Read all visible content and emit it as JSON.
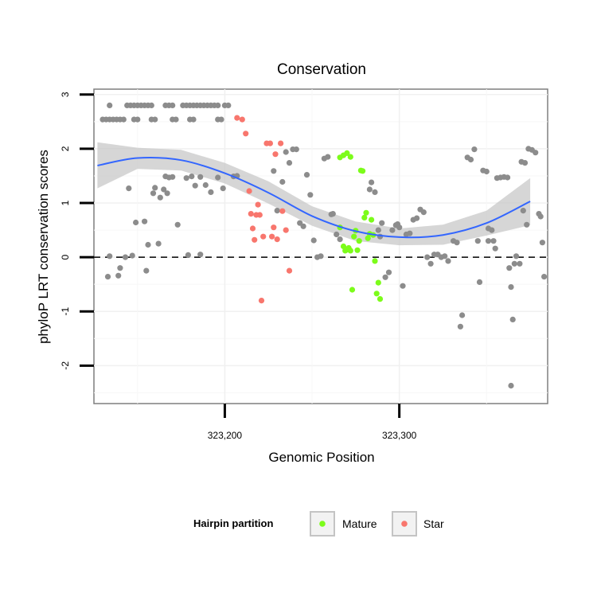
{
  "chart_data": {
    "type": "scatter",
    "title": "Conservation",
    "xlabel": "Genomic Position",
    "ylabel": "phyloP LRT conservation scores",
    "xlim": [
      323125,
      323385
    ],
    "ylim": [
      -2.7,
      3.1
    ],
    "x_ticks": [
      323200,
      323300
    ],
    "x_tick_labels": [
      "323,200",
      "323,300"
    ],
    "y_ticks": [
      -2,
      -1,
      0,
      1,
      2,
      3
    ],
    "y_tick_labels": [
      "-2",
      "-1",
      "0",
      "1",
      "2",
      "3"
    ],
    "reference_line": {
      "y": 0,
      "style": "dashed"
    },
    "grid": true,
    "legend": {
      "title": "Hairpin partition",
      "position": "bottom",
      "entries": [
        {
          "label": "Mature",
          "color": "#7CFC1A"
        },
        {
          "label": "Star",
          "color": "#F8766D"
        }
      ]
    },
    "colors": {
      "other": "#8c8c8c",
      "Mature": "#7CFC1A",
      "Star": "#F8766D",
      "smooth": "#3366FF",
      "ribbon": "#cccccc"
    },
    "series": [
      {
        "group": "other",
        "points": [
          [
            323130,
            2.54
          ],
          [
            323132,
            2.54
          ],
          [
            323134,
            2.54
          ],
          [
            323136,
            2.54
          ],
          [
            323138,
            2.54
          ],
          [
            323140,
            2.54
          ],
          [
            323142,
            2.54
          ],
          [
            323148,
            2.54
          ],
          [
            323150,
            2.54
          ],
          [
            323158,
            2.54
          ],
          [
            323160,
            2.54
          ],
          [
            323170,
            2.54
          ],
          [
            323172,
            2.54
          ],
          [
            323180,
            2.54
          ],
          [
            323182,
            2.54
          ],
          [
            323196,
            2.54
          ],
          [
            323198,
            2.54
          ],
          [
            323134,
            2.8
          ],
          [
            323144,
            2.8
          ],
          [
            323146,
            2.8
          ],
          [
            323148,
            2.8
          ],
          [
            323150,
            2.8
          ],
          [
            323152,
            2.8
          ],
          [
            323154,
            2.8
          ],
          [
            323156,
            2.8
          ],
          [
            323158,
            2.8
          ],
          [
            323166,
            2.8
          ],
          [
            323168,
            2.8
          ],
          [
            323170,
            2.8
          ],
          [
            323176,
            2.8
          ],
          [
            323178,
            2.8
          ],
          [
            323180,
            2.8
          ],
          [
            323182,
            2.8
          ],
          [
            323184,
            2.8
          ],
          [
            323186,
            2.8
          ],
          [
            323188,
            2.8
          ],
          [
            323190,
            2.8
          ],
          [
            323192,
            2.8
          ],
          [
            323194,
            2.8
          ],
          [
            323196,
            2.8
          ],
          [
            323200,
            2.8
          ],
          [
            323202,
            2.8
          ],
          [
            323134,
            0.02
          ],
          [
            323133,
            -0.36
          ],
          [
            323139,
            -0.34
          ],
          [
            323140,
            -0.2
          ],
          [
            323143,
            0.0
          ],
          [
            323147,
            0.03
          ],
          [
            323149,
            0.64
          ],
          [
            323154,
            0.66
          ],
          [
            323155,
            -0.25
          ],
          [
            323156,
            0.23
          ],
          [
            323159,
            1.18
          ],
          [
            323160,
            1.28
          ],
          [
            323162,
            0.25
          ],
          [
            323163,
            1.1
          ],
          [
            323165,
            1.25
          ],
          [
            323166,
            1.49
          ],
          [
            323167,
            1.18
          ],
          [
            323168,
            1.47
          ],
          [
            323170,
            1.48
          ],
          [
            323173,
            0.6
          ],
          [
            323178,
            1.46
          ],
          [
            323181,
            1.49
          ],
          [
            323183,
            1.32
          ],
          [
            323186,
            1.48
          ],
          [
            323189,
            1.33
          ],
          [
            323192,
            1.2
          ],
          [
            323196,
            1.47
          ],
          [
            323199,
            1.27
          ],
          [
            323145,
            1.27
          ],
          [
            323179,
            0.04
          ],
          [
            323186,
            0.05
          ],
          [
            323205,
            1.49
          ],
          [
            323207,
            1.5
          ],
          [
            323228,
            1.59
          ],
          [
            323230,
            0.86
          ],
          [
            323233,
            1.39
          ],
          [
            323235,
            1.94
          ],
          [
            323237,
            1.74
          ],
          [
            323239,
            1.99
          ],
          [
            323241,
            1.99
          ],
          [
            323243,
            0.63
          ],
          [
            323245,
            0.57
          ],
          [
            323247,
            1.52
          ],
          [
            323249,
            1.15
          ],
          [
            323251,
            0.31
          ],
          [
            323253,
            0.0
          ],
          [
            323255,
            0.02
          ],
          [
            323257,
            1.82
          ],
          [
            323259,
            1.85
          ],
          [
            323261,
            0.79
          ],
          [
            323262,
            0.8
          ],
          [
            323264,
            0.42
          ],
          [
            323266,
            0.33
          ],
          [
            323283,
            1.25
          ],
          [
            323284,
            1.38
          ],
          [
            323286,
            1.2
          ],
          [
            323288,
            0.5
          ],
          [
            323289,
            0.38
          ],
          [
            323290,
            0.63
          ],
          [
            323292,
            -0.37
          ],
          [
            323294,
            -0.28
          ],
          [
            323296,
            0.5
          ],
          [
            323298,
            0.59
          ],
          [
            323299,
            0.61
          ],
          [
            323300,
            0.55
          ],
          [
            323302,
            -0.53
          ],
          [
            323304,
            0.42
          ],
          [
            323306,
            0.44
          ],
          [
            323308,
            0.69
          ],
          [
            323310,
            0.72
          ],
          [
            323312,
            0.88
          ],
          [
            323314,
            0.83
          ],
          [
            323316,
            0.0
          ],
          [
            323318,
            -0.12
          ],
          [
            323320,
            0.05
          ],
          [
            323322,
            0.05
          ],
          [
            323324,
            0.0
          ],
          [
            323326,
            0.02
          ],
          [
            323328,
            -0.07
          ],
          [
            323331,
            0.3
          ],
          [
            323333,
            0.27
          ],
          [
            323335,
            -1.28
          ],
          [
            323336,
            -1.07
          ],
          [
            323339,
            1.84
          ],
          [
            323341,
            1.8
          ],
          [
            323343,
            1.99
          ],
          [
            323345,
            0.3
          ],
          [
            323346,
            -0.46
          ],
          [
            323348,
            1.6
          ],
          [
            323350,
            1.58
          ],
          [
            323351,
            0.53
          ],
          [
            323353,
            0.5
          ],
          [
            323354,
            0.3
          ],
          [
            323356,
            1.46
          ],
          [
            323358,
            1.47
          ],
          [
            323360,
            1.48
          ],
          [
            323362,
            1.47
          ],
          [
            323355,
            0.16
          ],
          [
            323364,
            -0.55
          ],
          [
            323365,
            -1.15
          ],
          [
            323366,
            -0.12
          ],
          [
            323367,
            0.02
          ],
          [
            323369,
            -0.12
          ],
          [
            323370,
            1.76
          ],
          [
            323372,
            1.74
          ],
          [
            323374,
            2.0
          ],
          [
            323376,
            1.98
          ],
          [
            323378,
            1.93
          ],
          [
            323380,
            0.8
          ],
          [
            323381,
            0.75
          ],
          [
            323382,
            0.27
          ],
          [
            323383,
            -0.36
          ],
          [
            323364,
            -2.37
          ],
          [
            323363,
            -0.2
          ],
          [
            323373,
            0.6
          ],
          [
            323371,
            0.86
          ],
          [
            323351,
            0.3
          ]
        ]
      },
      {
        "group": "Star",
        "points": [
          [
            323207,
            2.57
          ],
          [
            323210,
            2.54
          ],
          [
            323212,
            2.28
          ],
          [
            323214,
            1.22
          ],
          [
            323215,
            0.8
          ],
          [
            323216,
            0.53
          ],
          [
            323217,
            0.32
          ],
          [
            323218,
            0.78
          ],
          [
            323219,
            0.97
          ],
          [
            323220,
            0.78
          ],
          [
            323221,
            -0.8
          ],
          [
            323222,
            0.38
          ],
          [
            323224,
            2.1
          ],
          [
            323226,
            2.1
          ],
          [
            323227,
            0.38
          ],
          [
            323228,
            0.55
          ],
          [
            323229,
            1.9
          ],
          [
            323230,
            0.33
          ],
          [
            323232,
            2.1
          ],
          [
            323233,
            0.85
          ],
          [
            323235,
            0.5
          ],
          [
            323237,
            -0.25
          ]
        ]
      },
      {
        "group": "Mature",
        "points": [
          [
            323266,
            1.84
          ],
          [
            323268,
            1.88
          ],
          [
            323270,
            1.92
          ],
          [
            323272,
            1.85
          ],
          [
            323266,
            0.55
          ],
          [
            323268,
            0.2
          ],
          [
            323269,
            0.12
          ],
          [
            323270,
            0.14
          ],
          [
            323271,
            0.17
          ],
          [
            323272,
            0.12
          ],
          [
            323274,
            0.38
          ],
          [
            323275,
            0.49
          ],
          [
            323276,
            0.13
          ],
          [
            323277,
            0.3
          ],
          [
            323278,
            1.6
          ],
          [
            323279,
            1.59
          ],
          [
            323280,
            0.73
          ],
          [
            323281,
            0.82
          ],
          [
            323282,
            0.35
          ],
          [
            323283,
            0.43
          ],
          [
            323284,
            0.69
          ],
          [
            323285,
            0.41
          ],
          [
            323286,
            -0.07
          ],
          [
            323273,
            -0.6
          ],
          [
            323287,
            -0.67
          ],
          [
            323288,
            -0.47
          ],
          [
            323289,
            -0.77
          ]
        ]
      }
    ],
    "smooth": {
      "x": [
        323127,
        323150,
        323175,
        323200,
        323225,
        323250,
        323275,
        323300,
        323325,
        323350,
        323375
      ],
      "y": [
        1.69,
        1.83,
        1.79,
        1.55,
        1.19,
        0.76,
        0.48,
        0.37,
        0.41,
        0.63,
        1.03
      ],
      "lo": [
        1.27,
        1.63,
        1.6,
        1.36,
        0.99,
        0.58,
        0.3,
        0.22,
        0.23,
        0.4,
        0.59
      ],
      "hi": [
        2.12,
        2.02,
        1.98,
        1.74,
        1.4,
        0.94,
        0.66,
        0.53,
        0.6,
        0.86,
        1.46
      ]
    }
  }
}
